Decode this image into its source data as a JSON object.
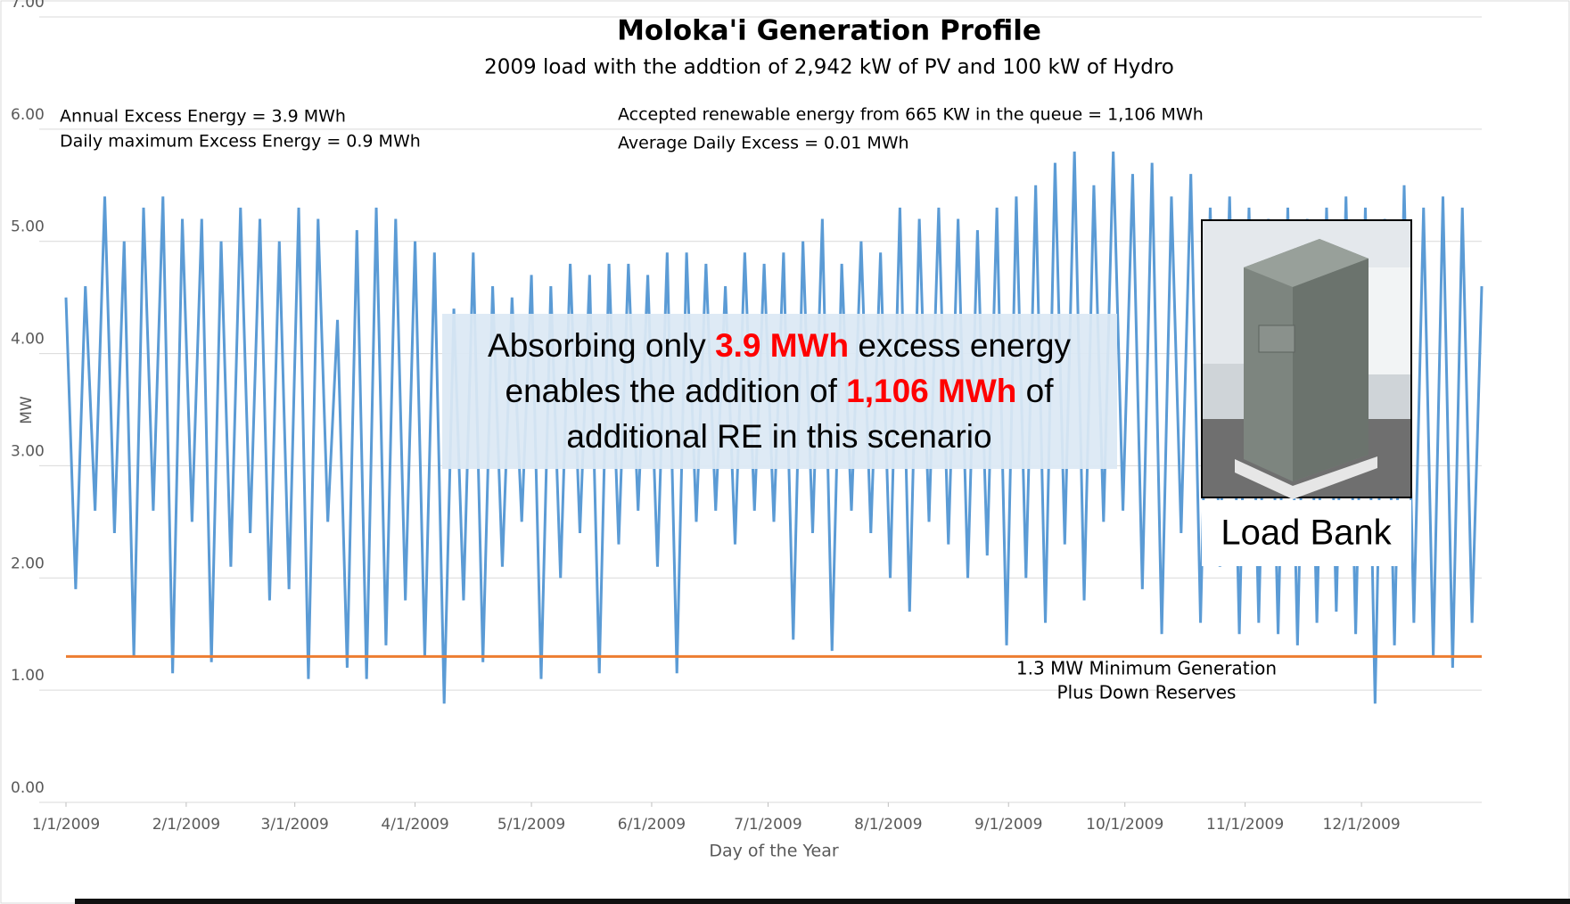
{
  "chart_data": {
    "type": "line",
    "title": "Moloka'i Generation Profile",
    "subtitle": "2009 load with the addtion of 2,942 kW of PV and 100 kW of Hydro",
    "annotations_left": [
      "Annual  Excess Energy = 3.9 MWh",
      "Daily maximum  Excess Energy = 0.9 MWh"
    ],
    "annotations_right": [
      "Accepted renewable energy from 665 KW in the queue = 1,106 MWh",
      "Average Daily Excess = 0.01 MWh"
    ],
    "xlabel": "Day of the Year",
    "ylabel": "MW",
    "xlim": [
      0,
      365
    ],
    "xticks": [
      {
        "value": 0,
        "label": "1/1/2009"
      },
      {
        "value": 31,
        "label": "2/1/2009"
      },
      {
        "value": 59,
        "label": "3/1/2009"
      },
      {
        "value": 90,
        "label": "4/1/2009"
      },
      {
        "value": 120,
        "label": "5/1/2009"
      },
      {
        "value": 151,
        "label": "6/1/2009"
      },
      {
        "value": 181,
        "label": "7/1/2009"
      },
      {
        "value": 212,
        "label": "8/1/2009"
      },
      {
        "value": 243,
        "label": "9/1/2009"
      },
      {
        "value": 273,
        "label": "10/1/2009"
      },
      {
        "value": 304,
        "label": "11/1/2009"
      },
      {
        "value": 334,
        "label": "12/1/2009"
      }
    ],
    "ylim": [
      0,
      7
    ],
    "yticks": [
      {
        "value": 0,
        "label": "0.00"
      },
      {
        "value": 1,
        "label": "1.00"
      },
      {
        "value": 2,
        "label": "2.00"
      },
      {
        "value": 3,
        "label": "3.00"
      },
      {
        "value": 4,
        "label": "4.00"
      },
      {
        "value": 5,
        "label": "5.00"
      },
      {
        "value": 6,
        "label": "6.00"
      },
      {
        "value": 7,
        "label": "7.00"
      }
    ],
    "grid": true,
    "x": [
      0,
      2.5,
      5,
      7.5,
      10,
      12.5,
      15,
      17.5,
      20,
      22.5,
      25,
      27.5,
      30,
      32.5,
      35,
      37.5,
      40,
      42.5,
      45,
      47.5,
      50,
      52.5,
      55,
      57.5,
      60,
      62.5,
      65,
      67.5,
      70,
      72.5,
      75,
      77.5,
      80,
      82.5,
      85,
      87.5,
      90,
      92.5,
      95,
      97.5,
      100,
      102.5,
      105,
      107.5,
      110,
      112.5,
      115,
      117.5,
      120,
      122.5,
      125,
      127.5,
      130,
      132.5,
      135,
      137.5,
      140,
      142.5,
      145,
      147.5,
      150,
      152.5,
      155,
      157.5,
      160,
      162.5,
      165,
      167.5,
      170,
      172.5,
      175,
      177.5,
      180,
      182.5,
      185,
      187.5,
      190,
      192.5,
      195,
      197.5,
      200,
      202.5,
      205,
      207.5,
      210,
      212.5,
      215,
      217.5,
      220,
      222.5,
      225,
      227.5,
      230,
      232.5,
      235,
      237.5,
      240,
      242.5,
      245,
      247.5,
      250,
      252.5,
      255,
      257.5,
      260,
      262.5,
      265,
      267.5,
      270,
      272.5,
      275,
      277.5,
      280,
      282.5,
      285,
      287.5,
      290,
      292.5,
      295,
      297.5,
      300,
      302.5,
      305,
      307.5,
      310,
      312.5,
      315,
      317.5,
      320,
      322.5,
      325,
      327.5,
      330,
      332.5,
      335,
      337.5,
      340,
      342.5,
      345,
      347.5,
      350,
      352.5,
      355,
      357.5,
      360,
      362.5,
      365
    ],
    "series": [
      {
        "color": "#5b9bd5",
        "values": [
          4.5,
          1.9,
          4.6,
          2.6,
          5.4,
          2.4,
          5.0,
          1.3,
          5.3,
          2.6,
          5.4,
          1.15,
          5.2,
          2.5,
          5.2,
          1.25,
          5.0,
          2.1,
          5.3,
          2.4,
          5.2,
          1.8,
          5.0,
          1.9,
          5.3,
          1.1,
          5.2,
          2.5,
          4.3,
          1.2,
          5.1,
          1.1,
          5.3,
          1.4,
          5.2,
          1.8,
          5.0,
          1.3,
          4.9,
          0.88,
          4.4,
          1.8,
          4.9,
          1.25,
          4.6,
          2.1,
          4.5,
          2.5,
          4.7,
          1.1,
          4.6,
          2.0,
          4.8,
          2.4,
          4.7,
          1.15,
          4.8,
          2.3,
          4.8,
          2.6,
          4.7,
          2.1,
          4.9,
          1.15,
          4.9,
          2.5,
          4.8,
          2.6,
          4.6,
          2.3,
          4.9,
          2.6,
          4.8,
          2.5,
          4.9,
          1.45,
          5.0,
          2.4,
          5.2,
          1.35,
          4.8,
          2.6,
          5.0,
          2.4,
          4.9,
          2.0,
          5.3,
          1.7,
          5.2,
          2.5,
          5.3,
          2.3,
          5.2,
          2.0,
          5.1,
          2.2,
          5.3,
          1.4,
          5.4,
          2.0,
          5.5,
          1.6,
          5.7,
          2.3,
          5.8,
          1.8,
          5.5,
          2.5,
          5.8,
          2.6,
          5.6,
          1.9,
          5.7,
          1.5,
          5.4,
          2.4,
          5.6,
          1.6,
          5.3,
          2.1,
          5.4,
          1.5,
          5.3,
          1.6,
          5.2,
          1.5,
          5.3,
          1.4,
          5.2,
          1.6,
          5.3,
          1.7,
          5.4,
          1.5,
          5.3,
          0.88,
          5.2,
          1.4,
          5.5,
          1.6,
          5.3,
          1.3,
          5.4,
          1.2,
          5.3,
          1.6,
          4.6
        ]
      }
    ],
    "reference_line": {
      "value": 1.3,
      "color": "#ed7d31",
      "label": [
        "1.3 MW Minimum Generation",
        "Plus Down Reserves"
      ]
    },
    "callout": {
      "lines": [
        [
          "Absorbing only ",
          "3.9 MWh",
          " excess energy"
        ],
        [
          "enables the addition of ",
          "1,106 MWh",
          " of"
        ],
        [
          "additional RE in this scenario"
        ]
      ],
      "highlight_color": "#ff0000"
    },
    "photo_caption": "Load Bank"
  }
}
